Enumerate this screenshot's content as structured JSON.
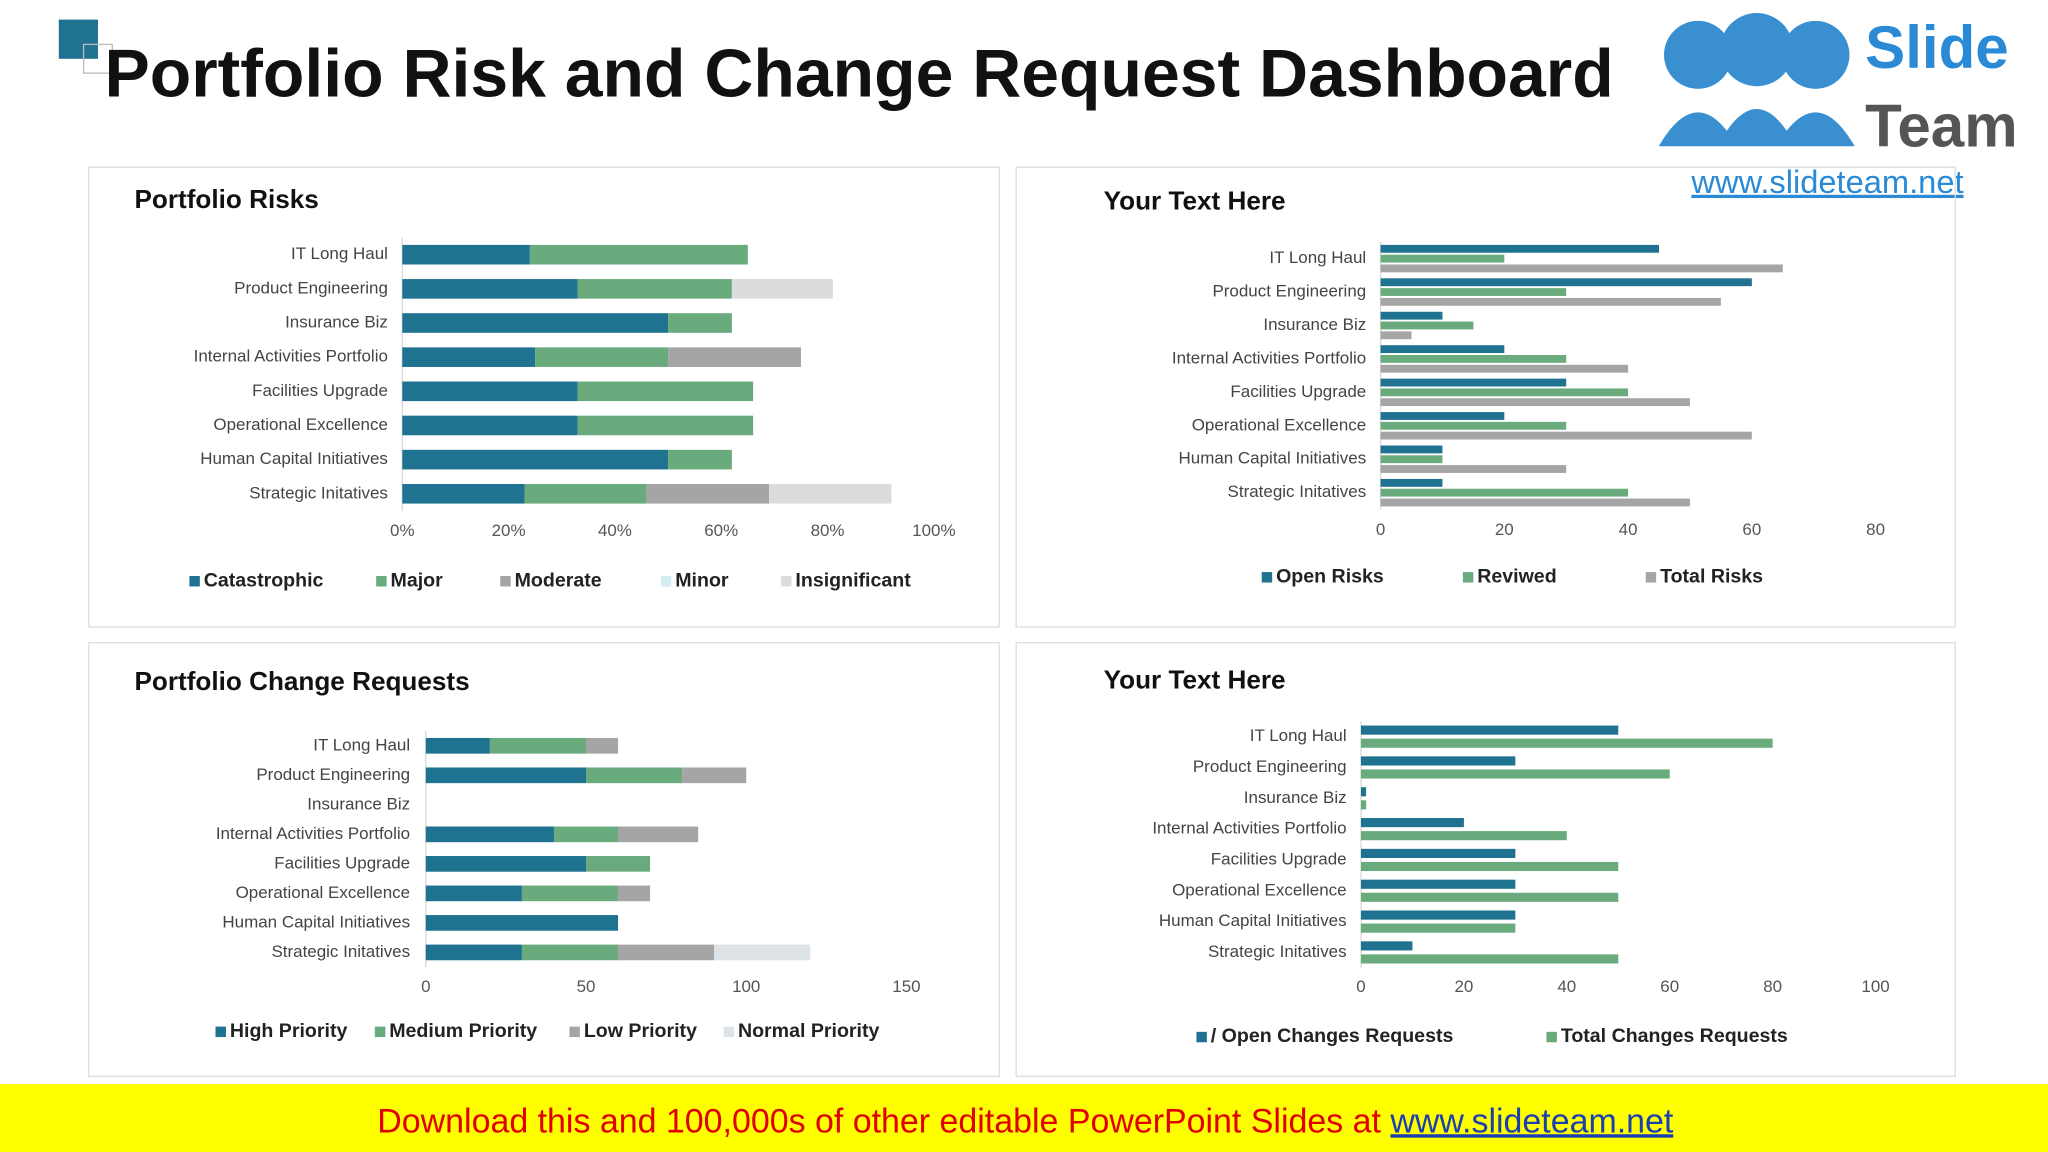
{
  "header": {
    "title": "Portfolio Risk and Change Request Dashboard"
  },
  "logo": {
    "line1": "Slide",
    "line2": "Team",
    "url": "www.slideteam.net"
  },
  "banner": {
    "text": "Download this and 100,000s of other editable PowerPoint Slides at ",
    "link": "www.slideteam.net"
  },
  "chart_data": [
    {
      "type": "bar",
      "stacked": true,
      "title": "Portfolio Risks",
      "categories": [
        "IT Long Haul",
        "Product Engineering",
        "Insurance Biz",
        "Internal Activities Portfolio",
        "Facilities Upgrade",
        "Operational Excellence",
        "Human Capital Initiatives",
        "Strategic Initatives"
      ],
      "series": [
        {
          "name": "Catastrophic",
          "color": "#1f7391",
          "values": [
            24,
            33,
            50,
            25,
            33,
            33,
            50,
            23
          ]
        },
        {
          "name": "Major",
          "color": "#6aab7e",
          "values": [
            41,
            29,
            12,
            25,
            33,
            33,
            12,
            23
          ]
        },
        {
          "name": "Moderate",
          "color": "#a5a5a5",
          "values": [
            0,
            0,
            0,
            25,
            0,
            0,
            0,
            23
          ]
        },
        {
          "name": "Minor",
          "color": "#d5ecf1",
          "values": [
            0,
            0,
            0,
            0,
            0,
            0,
            0,
            0
          ]
        },
        {
          "name": "Insignificant",
          "color": "#dcdcdc",
          "values": [
            0,
            19,
            0,
            0,
            0,
            0,
            0,
            23
          ]
        }
      ],
      "xlim": [
        0,
        100
      ],
      "xticks": [
        {
          "value": 0,
          "label": "0%"
        },
        {
          "value": 20,
          "label": "20%"
        },
        {
          "value": 40,
          "label": "40%"
        },
        {
          "value": 60,
          "label": "60%"
        },
        {
          "value": 80,
          "label": "80%"
        },
        {
          "value": 100,
          "label": "100%"
        }
      ]
    },
    {
      "type": "bar",
      "stacked": false,
      "title": "Your Text Here",
      "categories": [
        "IT Long Haul",
        "Product Engineering",
        "Insurance Biz",
        "Internal Activities Portfolio",
        "Facilities Upgrade",
        "Operational Excellence",
        "Human Capital Initiatives",
        "Strategic Initatives"
      ],
      "series": [
        {
          "name": "Open Risks",
          "color": "#1f7391",
          "values": [
            45,
            60,
            10,
            20,
            30,
            20,
            10,
            10
          ]
        },
        {
          "name": "Reviwed",
          "color": "#6aab7e",
          "values": [
            20,
            30,
            15,
            30,
            40,
            30,
            10,
            40
          ]
        },
        {
          "name": "Total Risks",
          "color": "#a5a5a5",
          "values": [
            65,
            55,
            5,
            40,
            50,
            60,
            30,
            50
          ]
        }
      ],
      "xlim": [
        0,
        80
      ],
      "xticks": [
        0,
        20,
        40,
        60,
        80
      ]
    },
    {
      "type": "bar",
      "stacked": true,
      "title": "Portfolio Change Requests",
      "categories": [
        "IT Long Haul",
        "Product Engineering",
        "Insurance Biz",
        "Internal Activities Portfolio",
        "Facilities Upgrade",
        "Operational Excellence",
        "Human Capital Initiatives",
        "Strategic Initatives"
      ],
      "series": [
        {
          "name": "High Priority",
          "color": "#1f7391",
          "values": [
            20,
            50,
            0,
            40,
            50,
            30,
            60,
            30
          ]
        },
        {
          "name": "Medium Priority",
          "color": "#6aab7e",
          "values": [
            30,
            30,
            0,
            20,
            20,
            30,
            0,
            30
          ]
        },
        {
          "name": "Low Priority",
          "color": "#a5a5a5",
          "values": [
            10,
            20,
            0,
            25,
            0,
            10,
            0,
            30
          ]
        },
        {
          "name": "Normal Priority",
          "color": "#dde3e6",
          "values": [
            0,
            0,
            0,
            0,
            0,
            0,
            0,
            30
          ]
        }
      ],
      "xlim": [
        0,
        150
      ],
      "xticks": [
        0,
        50,
        100,
        150
      ]
    },
    {
      "type": "bar",
      "stacked": false,
      "title": "Your Text Here",
      "categories": [
        "IT Long Haul",
        "Product Engineering",
        "Insurance Biz",
        "Internal Activities Portfolio",
        "Facilities Upgrade",
        "Operational Excellence",
        "Human Capital Initiatives",
        "Strategic Initatives"
      ],
      "series": [
        {
          "name": "/ Open Changes Requests",
          "color": "#1f7391",
          "values": [
            50,
            30,
            1,
            20,
            30,
            30,
            30,
            10
          ]
        },
        {
          "name": "Total Changes Requests",
          "color": "#6aab7e",
          "values": [
            80,
            60,
            1,
            40,
            50,
            50,
            30,
            50
          ]
        }
      ],
      "xlim": [
        0,
        100
      ],
      "xticks": [
        0,
        20,
        40,
        60,
        80,
        100
      ]
    }
  ]
}
